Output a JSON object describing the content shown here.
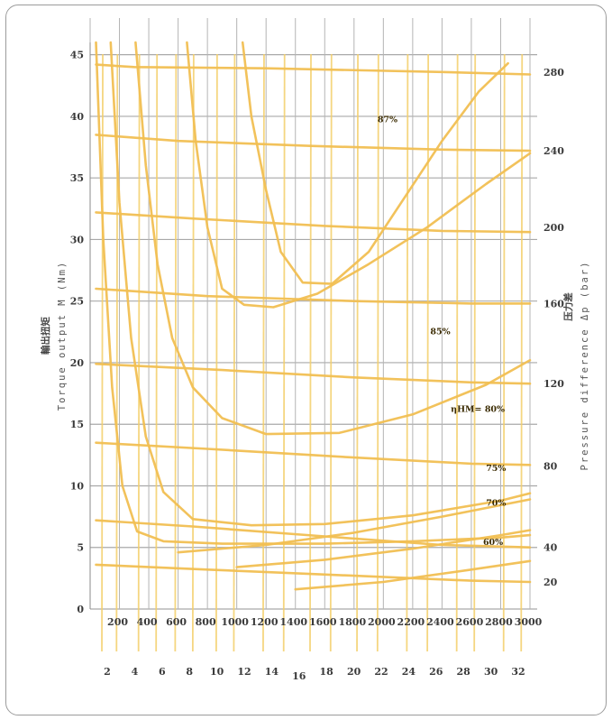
{
  "chart_data": {
    "type": "line",
    "title": "",
    "ylabel_cn": "輸出扭矩",
    "ylabel_en": "Torque output M (Nm)",
    "ylabel_right_cn": "压力差",
    "ylabel_right_en": "Pressure difference Δp (bar)",
    "xlim": [
      0,
      3000
    ],
    "ylim": [
      0,
      46
    ],
    "x_ticks": [
      200,
      400,
      600,
      800,
      1000,
      1200,
      1400,
      1600,
      1800,
      2000,
      2200,
      2400,
      2600,
      2800,
      3000
    ],
    "x_tick_labels": [
      "200",
      "400",
      "600",
      "800",
      "1000",
      "1200",
      "1400",
      "1600",
      "1800",
      "2000",
      "2200",
      "2400",
      "2600",
      "2800",
      "3000"
    ],
    "y_ticks": [
      0,
      5,
      10,
      15,
      20,
      25,
      30,
      35,
      40,
      45
    ],
    "y_tick_labels": [
      "0",
      "5",
      "10",
      "15",
      "20",
      "25",
      "30",
      "35",
      "40",
      "45"
    ],
    "secondary_x_ticks": [
      2,
      4,
      6,
      8,
      10,
      12,
      14,
      16,
      18,
      20,
      22,
      24,
      26,
      28,
      30,
      32
    ],
    "secondary_x_tick_labels": [
      "2",
      "4",
      "6",
      "8",
      "10",
      "12",
      "14",
      "16",
      "18",
      "20",
      "22",
      "24",
      "26",
      "28",
      "30",
      "32"
    ],
    "right_ticks": [
      {
        "label": "20",
        "y": 2.2
      },
      {
        "label": "40",
        "y": 5.0
      },
      {
        "label": "80",
        "y": 11.6
      },
      {
        "label": "120",
        "y": 18.3
      },
      {
        "label": "160",
        "y": 24.8
      },
      {
        "label": "200",
        "y": 31.0
      },
      {
        "label": "240",
        "y": 37.2
      },
      {
        "label": "280",
        "y": 43.6
      }
    ],
    "grid": true,
    "annotations": [
      {
        "text": "87%",
        "x": 1960,
        "y": 39.5
      },
      {
        "text": "85%",
        "x": 2320,
        "y": 22.3
      },
      {
        "text": "ηHM= 80%",
        "x": 2460,
        "y": 16.0
      },
      {
        "text": "75%",
        "x": 2700,
        "y": 11.2
      },
      {
        "text": "70%",
        "x": 2700,
        "y": 8.4
      },
      {
        "text": "60%",
        "x": 2680,
        "y": 5.2
      }
    ],
    "series": [
      {
        "values": [
          [
            40,
            44.2
          ],
          [
            300,
            44.0
          ],
          [
            1200,
            43.9
          ],
          [
            2400,
            43.6
          ],
          [
            3000,
            43.4
          ]
        ]
      },
      {
        "values": [
          [
            40,
            38.5
          ],
          [
            600,
            38.0
          ],
          [
            1500,
            37.6
          ],
          [
            2400,
            37.3
          ],
          [
            3000,
            37.2
          ]
        ]
      },
      {
        "values": [
          [
            40,
            32.2
          ],
          [
            700,
            31.7
          ],
          [
            1600,
            31.1
          ],
          [
            2400,
            30.7
          ],
          [
            3000,
            30.6
          ]
        ]
      },
      {
        "values": [
          [
            40,
            26.0
          ],
          [
            800,
            25.4
          ],
          [
            1800,
            25.0
          ],
          [
            2600,
            24.8
          ],
          [
            3000,
            24.8
          ]
        ]
      },
      {
        "values": [
          [
            40,
            19.9
          ],
          [
            900,
            19.4
          ],
          [
            1800,
            18.8
          ],
          [
            2600,
            18.4
          ],
          [
            3000,
            18.3
          ]
        ]
      },
      {
        "values": [
          [
            40,
            13.5
          ],
          [
            800,
            13.0
          ],
          [
            1800,
            12.3
          ],
          [
            2600,
            11.8
          ],
          [
            3000,
            11.7
          ]
        ]
      },
      {
        "values": [
          [
            40,
            7.2
          ],
          [
            700,
            6.7
          ],
          [
            1600,
            5.9
          ],
          [
            2400,
            5.2
          ],
          [
            3000,
            5.0
          ]
        ]
      },
      {
        "values": [
          [
            40,
            3.6
          ],
          [
            800,
            3.2
          ],
          [
            1800,
            2.7
          ],
          [
            2600,
            2.3
          ],
          [
            3000,
            2.2
          ]
        ]
      },
      {
        "values": [
          [
            40,
            46
          ],
          [
            90,
            30
          ],
          [
            150,
            18
          ],
          [
            220,
            10
          ],
          [
            320,
            6.3
          ],
          [
            500,
            5.5
          ],
          [
            900,
            5.3
          ],
          [
            1600,
            5.3
          ],
          [
            2200,
            5.5
          ],
          [
            2800,
            5.8
          ],
          [
            3000,
            6.0
          ]
        ]
      },
      {
        "values": [
          [
            140,
            46
          ],
          [
            200,
            33
          ],
          [
            280,
            22
          ],
          [
            380,
            14
          ],
          [
            500,
            9.5
          ],
          [
            700,
            7.3
          ],
          [
            1100,
            6.8
          ],
          [
            1600,
            6.9
          ],
          [
            2200,
            7.6
          ],
          [
            2800,
            8.8
          ],
          [
            3000,
            9.4
          ]
        ]
      },
      {
        "values": [
          [
            310,
            46
          ],
          [
            380,
            36
          ],
          [
            460,
            28
          ],
          [
            560,
            22
          ],
          [
            700,
            18
          ],
          [
            900,
            15.5
          ],
          [
            1200,
            14.2
          ],
          [
            1700,
            14.3
          ],
          [
            2200,
            15.8
          ],
          [
            2700,
            18.2
          ],
          [
            3000,
            20.2
          ]
        ]
      },
      {
        "values": [
          [
            660,
            46
          ],
          [
            720,
            38
          ],
          [
            800,
            31
          ],
          [
            900,
            26
          ],
          [
            1050,
            24.7
          ],
          [
            1250,
            24.5
          ],
          [
            1550,
            25.6
          ],
          [
            1900,
            28.0
          ],
          [
            2300,
            31.0
          ],
          [
            2700,
            34.5
          ],
          [
            3000,
            37.0
          ]
        ]
      },
      {
        "values": [
          [
            1040,
            46
          ],
          [
            1100,
            40
          ],
          [
            1200,
            34
          ],
          [
            1300,
            29
          ],
          [
            1450,
            26.5
          ],
          [
            1650,
            26.4
          ],
          [
            1900,
            29.0
          ],
          [
            2150,
            33.5
          ],
          [
            2400,
            38.0
          ],
          [
            2650,
            42.0
          ],
          [
            2850,
            44.3
          ]
        ]
      },
      {
        "values": [
          [
            600,
            4.6
          ],
          [
            1200,
            5.2
          ],
          [
            1800,
            6.2
          ],
          [
            2400,
            7.5
          ],
          [
            3000,
            8.9
          ]
        ]
      },
      {
        "values": [
          [
            1000,
            3.4
          ],
          [
            1600,
            4.0
          ],
          [
            2200,
            4.9
          ],
          [
            2800,
            6.0
          ],
          [
            3000,
            6.4
          ]
        ]
      },
      {
        "values": [
          [
            1400,
            1.6
          ],
          [
            2000,
            2.2
          ],
          [
            2600,
            3.2
          ],
          [
            3000,
            3.9
          ]
        ]
      }
    ],
    "verticals": [
      80,
      180,
      330,
      450,
      580,
      700,
      860,
      980,
      1180,
      1320,
      1500,
      1640,
      1820,
      1960,
      2160,
      2300,
      2500,
      2620,
      2820,
      2940
    ]
  }
}
